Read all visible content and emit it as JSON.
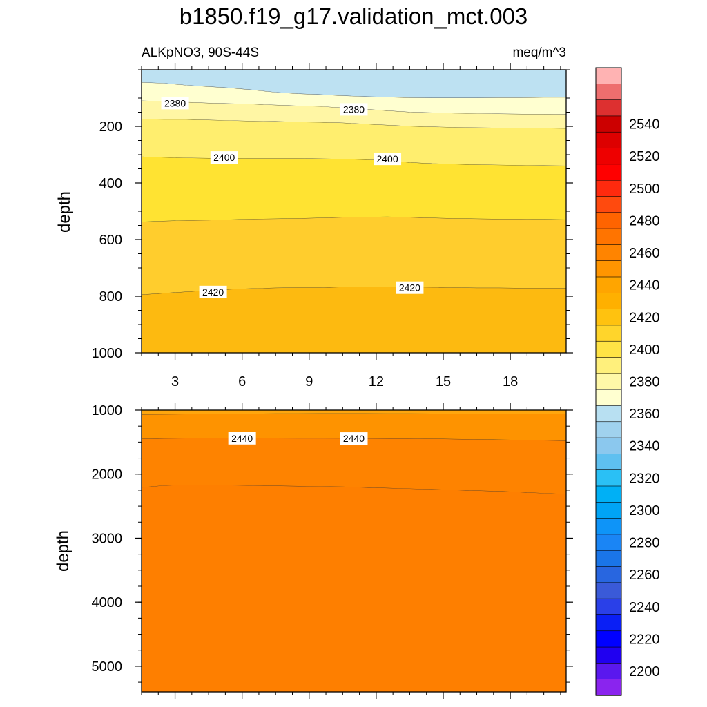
{
  "chart_data": {
    "type": "contour",
    "title": "b1850.f19_g17.validation_mct.003",
    "subtitle_left": "ALKpNO3, 90S-44S",
    "subtitle_right": "meq/m^3",
    "ylabel": "depth",
    "x_ticks": [
      "3",
      "6",
      "9",
      "12",
      "15",
      "18"
    ],
    "xlim": [
      1.5,
      20.5
    ],
    "panels": [
      {
        "name": "upper",
        "ylim": [
          0,
          1000
        ],
        "y_ticks": [
          "200",
          "400",
          "600",
          "800",
          "1000"
        ],
        "bands": [
          {
            "level": 2360,
            "color": "#BDE1F2",
            "top": [
              0,
              0,
              0,
              0,
              0,
              0,
              0,
              0,
              0,
              0,
              0,
              0,
              0,
              0,
              0,
              0,
              0,
              0,
              0,
              0
            ],
            "lower_edge": [
              45,
              48,
              55,
              60,
              65,
              72,
              80,
              85,
              88,
              92,
              95,
              97,
              99,
              100,
              100,
              100,
              99,
              99,
              98,
              98
            ]
          },
          {
            "level": 2370,
            "color": "#FFFFD0",
            "lower_edge": [
              110,
              112,
              115,
              118,
              120,
              122,
              125,
              128,
              130,
              135,
              140,
              145,
              150,
              152,
              154,
              155,
              156,
              157,
              157,
              158
            ]
          },
          {
            "level": 2380,
            "color": "#FFF6A4",
            "lower_edge": [
              175,
              176,
              176,
              178,
              180,
              182,
              183,
              185,
              186,
              188,
              192,
              196,
              200,
              202,
              204,
              205,
              206,
              207,
              207,
              208
            ]
          },
          {
            "level": 2390,
            "color": "#FFEE6E",
            "lower_edge": [
              308,
              310,
              312,
              313,
              313,
              314,
              314,
              314,
              315,
              316,
              318,
              322,
              328,
              332,
              334,
              336,
              337,
              338,
              339,
              340
            ]
          },
          {
            "level": 2400,
            "color": "#FFE332",
            "lower_edge": [
              538,
              535,
              533,
              532,
              530,
              528,
              527,
              526,
              524,
              522,
              521,
              520,
              522,
              524,
              526,
              527,
              528,
              528,
              529,
              530
            ]
          },
          {
            "level": 2410,
            "color": "#FFCD2D",
            "lower_edge": [
              795,
              790,
              785,
              780,
              776,
              773,
              771,
              770,
              770,
              768,
              767,
              767,
              768,
              769,
              770,
              771,
              771,
              772,
              772,
              772
            ]
          },
          {
            "level": 2420,
            "color": "#FDBA10",
            "lower_edge": "bottom"
          }
        ],
        "contour_labels": [
          {
            "text": "2380",
            "x": 3.0,
            "y": 118
          },
          {
            "text": "2380",
            "x": 11.0,
            "y": 140
          },
          {
            "text": "2400",
            "x": 5.2,
            "y": 310
          },
          {
            "text": "2400",
            "x": 12.5,
            "y": 315
          },
          {
            "text": "2420",
            "x": 4.7,
            "y": 785
          },
          {
            "text": "2420",
            "x": 13.5,
            "y": 770
          }
        ]
      },
      {
        "name": "lower",
        "ylim": [
          1000,
          5400
        ],
        "y_ticks": [
          "1000",
          "2000",
          "3000",
          "4000",
          "5000"
        ],
        "bands": [
          {
            "level": 2440,
            "color": "#FEA60E",
            "lower_edge": [
              1070,
              1068,
              1065,
              1062,
              1060,
              1058,
              1057,
              1056,
              1055,
              1055,
              1055,
              1056,
              1057,
              1058,
              1058,
              1059,
              1060,
              1060,
              1060,
              1060
            ]
          },
          {
            "level": 2450,
            "color": "#FE9300",
            "lower_edge": [
              1450,
              1445,
              1442,
              1440,
              1440,
              1441,
              1442,
              1443,
              1443,
              1444,
              1445,
              1446,
              1447,
              1450,
              1455,
              1460,
              1465,
              1470,
              1475,
              1480
            ]
          },
          {
            "level": 2460,
            "color": "#FE8300",
            "lower_edge": [
              2210,
              2180,
              2170,
              2170,
              2175,
              2180,
              2185,
              2190,
              2195,
              2200,
              2210,
              2220,
              2230,
              2240,
              2250,
              2260,
              2270,
              2285,
              2300,
              2315
            ]
          },
          {
            "level": 2470,
            "color": "#FE7F00",
            "lower_edge": "bottom"
          }
        ],
        "contour_labels": [
          {
            "text": "2440",
            "x": 6.0,
            "y": 1440
          },
          {
            "text": "2440",
            "x": 11.0,
            "y": 1443
          }
        ]
      }
    ],
    "colorbar": {
      "labels": [
        "2540",
        "2520",
        "2500",
        "2480",
        "2460",
        "2440",
        "2420",
        "2400",
        "2380",
        "2360",
        "2340",
        "2320",
        "2300",
        "2280",
        "2260",
        "2240",
        "2220",
        "2200"
      ],
      "colors_top_to_bottom": [
        "#FFB3B3",
        "#EE6E6E",
        "#DD3030",
        "#CC0000",
        "#DD0000",
        "#EE0000",
        "#FF0000",
        "#FF2A0E",
        "#FF4A0E",
        "#FF6400",
        "#FF7400",
        "#FF8400",
        "#FF9500",
        "#FFA500",
        "#FFB000",
        "#FFC20F",
        "#FFD52B",
        "#FFE345",
        "#FFF07C",
        "#FFF8A8",
        "#FFFFD0",
        "#B8E0F2",
        "#A0D2EE",
        "#8BC8EE",
        "#5EC0F0",
        "#2AC0F5",
        "#00B0F5",
        "#00A4F5",
        "#0E94F8",
        "#1A85F5",
        "#1A75E8",
        "#2866E0",
        "#3A5AD8",
        "#2A40E8",
        "#0A1FF5",
        "#0000FF",
        "#2000F0",
        "#5A18EE",
        "#8A24EE"
      ]
    }
  }
}
